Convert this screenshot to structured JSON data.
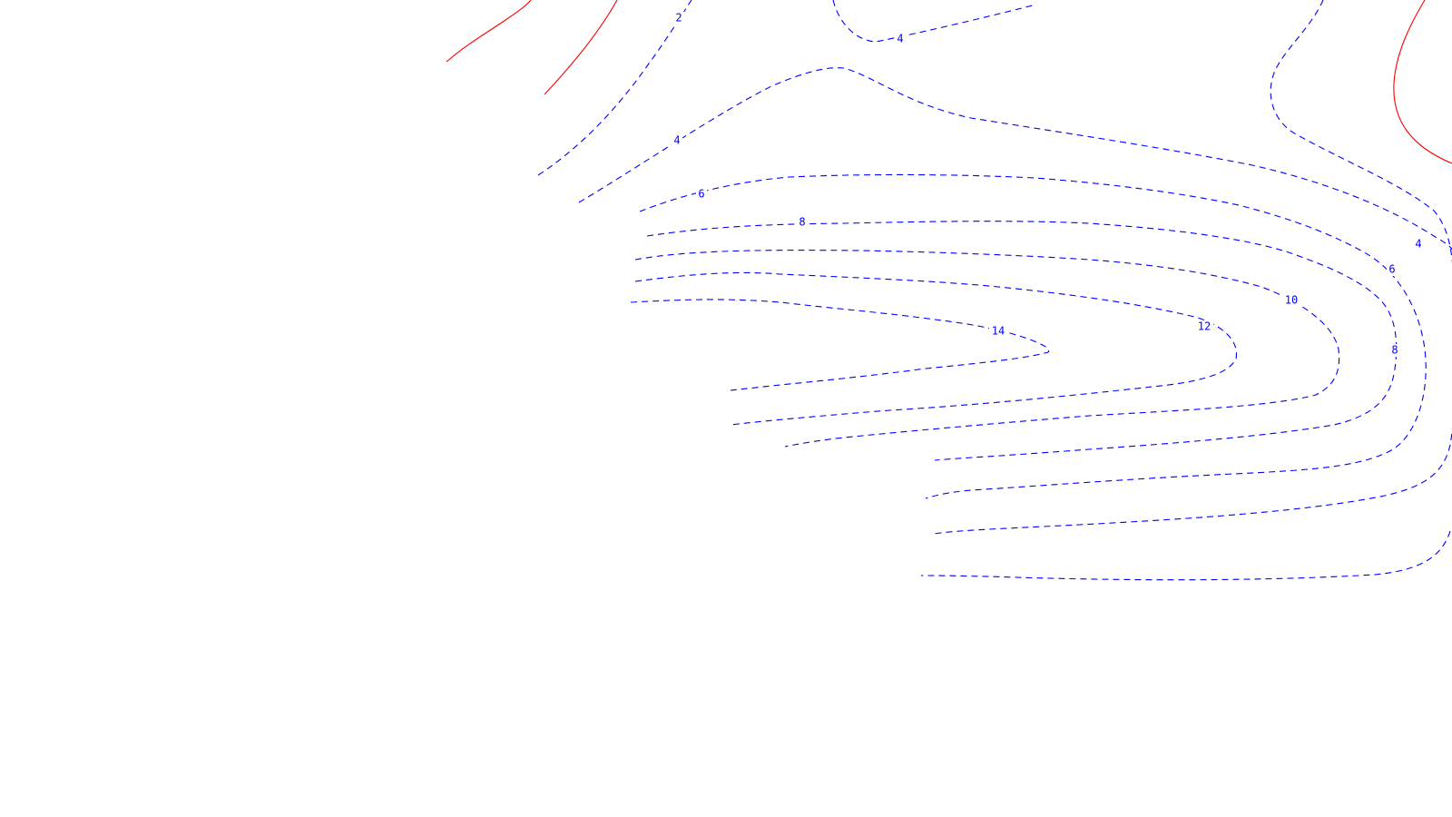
{
  "chart_data": {
    "type": "contour",
    "title": "",
    "xlabel": "",
    "ylabel": "",
    "grid": false,
    "legend": "none",
    "colors": {
      "negative": "#0000ff",
      "positive": "#ff0000",
      "background": "#ffffff"
    },
    "negative_linestyle": "dashed",
    "positive_linestyle": "solid",
    "levels": [
      {
        "key": "pos-a",
        "level": null,
        "sign": "positive"
      },
      {
        "key": "pos-b",
        "level": null,
        "sign": "positive"
      },
      {
        "key": "pos-c",
        "level": null,
        "sign": "positive"
      },
      {
        "key": "neg-2",
        "level": 2,
        "sign": "negative"
      },
      {
        "key": "neg-4-top",
        "level": 4,
        "sign": "negative"
      },
      {
        "key": "neg-4-left",
        "level": 4,
        "sign": "negative"
      },
      {
        "key": "neg-4-right",
        "level": 4,
        "sign": "negative"
      },
      {
        "key": "neg-6-left",
        "level": 6,
        "sign": "negative"
      },
      {
        "key": "neg-6-right",
        "level": 6,
        "sign": "negative"
      },
      {
        "key": "neg-8-left",
        "level": 8,
        "sign": "negative"
      },
      {
        "key": "neg-8-right",
        "level": 8,
        "sign": "negative"
      },
      {
        "key": "neg-10",
        "level": 10,
        "sign": "negative"
      },
      {
        "key": "neg-12",
        "level": 12,
        "sign": "negative"
      },
      {
        "key": "neg-14",
        "level": 14,
        "sign": "negative"
      }
    ],
    "labels": [
      {
        "text": "2",
        "line": "neg-2"
      },
      {
        "text": "4",
        "line": "neg-4-top"
      },
      {
        "text": "4",
        "line": "neg-4-left"
      },
      {
        "text": "4",
        "line": "neg-4-right"
      },
      {
        "text": "6",
        "line": "neg-6-left"
      },
      {
        "text": "6",
        "line": "neg-6-right"
      },
      {
        "text": "8",
        "line": "neg-8-left"
      },
      {
        "text": "8",
        "line": "neg-8-right"
      },
      {
        "text": "10",
        "line": "neg-10"
      },
      {
        "text": "12",
        "line": "neg-12"
      },
      {
        "text": "14",
        "line": "neg-14"
      }
    ]
  }
}
